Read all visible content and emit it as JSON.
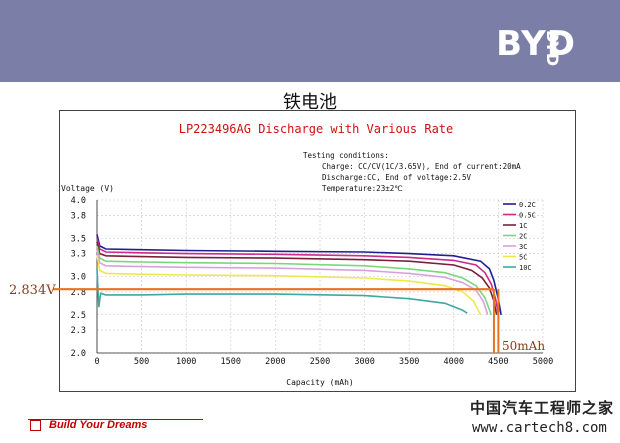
{
  "header": {
    "logo_text": "BYD",
    "logo_side_text": "BYD",
    "banner_color": "#7b7fa8"
  },
  "slide": {
    "title": "铁电池"
  },
  "chart_data": {
    "type": "line",
    "title": "LP223496AG Discharge with Various Rate",
    "conditions": [
      "Testing conditions:",
      "Charge: CC/CV(1C/3.65V), End of current:20mA",
      "Discharge:CC, End of voltage:2.5V",
      "Temperature:23±2℃"
    ],
    "xlabel": "Capacity (mAh)",
    "ylabel": "Voltage (V)",
    "xlim": [
      0,
      5000
    ],
    "ylim": [
      2.0,
      4.0
    ],
    "x_ticks": [
      0,
      500,
      1000,
      1500,
      2000,
      2500,
      3000,
      3500,
      4000,
      4500,
      5000
    ],
    "y_ticks": [
      2.0,
      2.3,
      2.5,
      2.8,
      3.0,
      3.3,
      3.5,
      3.8,
      4.0
    ],
    "y_tick_labels": [
      "2.0",
      "2.3",
      "2.5",
      "2.8",
      "3.0",
      "3.3",
      "3.5",
      "3.8",
      "4.0"
    ],
    "grid": true,
    "legend_position": "right",
    "series": [
      {
        "name": "0.2C",
        "color": "#1f1f8f",
        "x": [
          0,
          30,
          100,
          500,
          1000,
          2000,
          3000,
          3500,
          4000,
          4300,
          4400,
          4450,
          4500,
          4530
        ],
        "y": [
          3.55,
          3.4,
          3.36,
          3.35,
          3.34,
          3.33,
          3.32,
          3.3,
          3.27,
          3.2,
          3.1,
          2.95,
          2.7,
          2.5
        ]
      },
      {
        "name": "0.5C",
        "color": "#cc2a8c",
        "x": [
          0,
          30,
          100,
          500,
          1000,
          2000,
          3000,
          3500,
          4000,
          4250,
          4350,
          4420,
          4470,
          4500
        ],
        "y": [
          3.5,
          3.36,
          3.32,
          3.31,
          3.3,
          3.29,
          3.27,
          3.25,
          3.21,
          3.15,
          3.05,
          2.9,
          2.7,
          2.5
        ]
      },
      {
        "name": "1C",
        "color": "#7a1f3a",
        "x": [
          0,
          30,
          100,
          500,
          1000,
          2000,
          3000,
          3500,
          4000,
          4200,
          4320,
          4400,
          4450,
          4480
        ],
        "y": [
          3.45,
          3.3,
          3.27,
          3.26,
          3.25,
          3.24,
          3.22,
          3.2,
          3.15,
          3.08,
          2.98,
          2.85,
          2.68,
          2.5
        ]
      },
      {
        "name": "2C",
        "color": "#7ad67a",
        "x": [
          0,
          30,
          100,
          500,
          1000,
          2000,
          3000,
          3500,
          3900,
          4100,
          4250,
          4350,
          4420
        ],
        "y": [
          3.4,
          3.24,
          3.2,
          3.19,
          3.18,
          3.17,
          3.14,
          3.1,
          3.05,
          2.98,
          2.88,
          2.72,
          2.5
        ]
      },
      {
        "name": "3C",
        "color": "#d9a0e0",
        "x": [
          0,
          30,
          100,
          500,
          1000,
          2000,
          3000,
          3500,
          3900,
          4100,
          4250,
          4330,
          4380
        ],
        "y": [
          3.35,
          3.18,
          3.14,
          3.13,
          3.12,
          3.11,
          3.08,
          3.04,
          2.99,
          2.92,
          2.82,
          2.68,
          2.5
        ]
      },
      {
        "name": "5C",
        "color": "#f0e84a",
        "x": [
          0,
          30,
          100,
          500,
          1000,
          2000,
          3000,
          3500,
          3900,
          4100,
          4220,
          4300
        ],
        "y": [
          3.28,
          3.08,
          3.04,
          3.03,
          3.02,
          3.01,
          2.98,
          2.94,
          2.88,
          2.8,
          2.68,
          2.5
        ]
      },
      {
        "name": "10C",
        "color": "#3fa8a0",
        "x": [
          0,
          20,
          40,
          100,
          500,
          1000,
          2000,
          3000,
          3500,
          3900,
          4100,
          4150
        ],
        "y": [
          3.1,
          2.6,
          2.78,
          2.76,
          2.76,
          2.77,
          2.77,
          2.75,
          2.71,
          2.65,
          2.56,
          2.52
        ]
      }
    ],
    "annotations": [
      {
        "text": "2.834V",
        "y": 2.834,
        "color": "#e8731e"
      },
      {
        "text": "50mAh",
        "x_range": [
          4450,
          4500
        ],
        "color": "#e8731e"
      }
    ]
  },
  "footer": {
    "slogan": "Build Your Dreams",
    "accent_color": "#c00000"
  },
  "watermark": {
    "line1": "中国汽车工程师之家",
    "line2": "www.cartech8.com"
  }
}
